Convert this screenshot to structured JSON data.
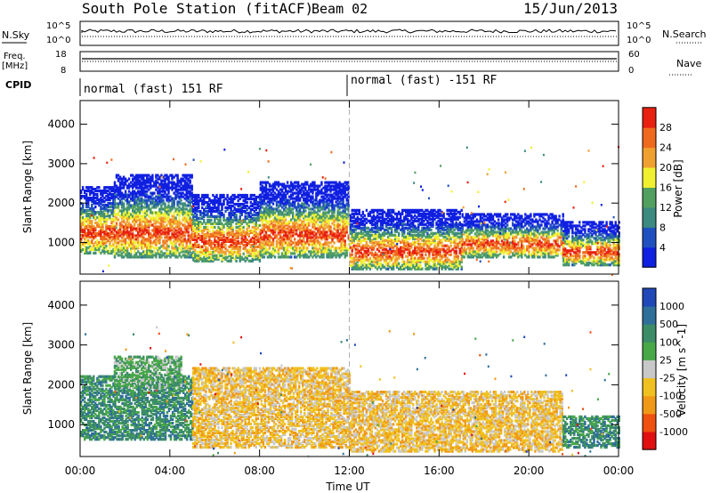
{
  "header": {
    "station": "South Pole Station (fitACF)",
    "beam": "Beam 02",
    "date": "15/Jun/2013"
  },
  "left_labels": {
    "nsky": "N.Sky",
    "freq": "Freq.",
    "mhz": "[MHz]",
    "cpid": "CPID"
  },
  "right_labels": {
    "nsearch": "N.Search",
    "nave": "Nave"
  },
  "noise_panel": {
    "tick_hi": "10^5",
    "tick_lo": "10^0"
  },
  "freq_panel": {
    "left_ticks": [
      "18",
      "8"
    ],
    "right_ticks": [
      "60",
      "0"
    ]
  },
  "cpid_segments": [
    "normal (fast) 151 RF",
    "normal (fast) -151 RF"
  ],
  "chart_data": [
    {
      "type": "heatmap",
      "name": "power",
      "xlabel": "",
      "ylabel": "Slant Range [km]",
      "y_ticks": [
        "1000",
        "2000",
        "3000",
        "4000"
      ],
      "ylim": [
        200,
        4600
      ],
      "xlim": [
        "00:00",
        "24:00"
      ],
      "colorbar": {
        "label": "Power [dB]",
        "ticks": [
          "4",
          "8",
          "12",
          "16",
          "20",
          "24",
          "28"
        ],
        "colors": [
          "#1020e0",
          "#2050c0",
          "#3d8a80",
          "#52a060",
          "#f0f030",
          "#f0a030",
          "#f06a1e",
          "#e82010"
        ]
      },
      "echo_bands": [
        {
          "t_start": 0.0,
          "t_end": 1.5,
          "range_low": 700,
          "range_high": 2400
        },
        {
          "t_start": 1.5,
          "t_end": 5.0,
          "range_low": 600,
          "range_high": 2700
        },
        {
          "t_start": 5.0,
          "t_end": 8.0,
          "range_low": 500,
          "range_high": 2200
        },
        {
          "t_start": 8.0,
          "t_end": 12.0,
          "range_low": 600,
          "range_high": 2500
        },
        {
          "t_start": 12.0,
          "t_end": 17.0,
          "range_low": 300,
          "range_high": 1800
        },
        {
          "t_start": 17.0,
          "t_end": 21.5,
          "range_low": 600,
          "range_high": 1700
        },
        {
          "t_start": 21.5,
          "t_end": 24.0,
          "range_low": 400,
          "range_high": 1500
        }
      ]
    },
    {
      "type": "heatmap",
      "name": "velocity",
      "xlabel": "Time UT",
      "ylabel": "Slant Range [km]",
      "x_ticks": [
        "00:00",
        "04:00",
        "08:00",
        "12:00",
        "16:00",
        "20:00",
        "00:00"
      ],
      "y_ticks": [
        "1000",
        "2000",
        "3000",
        "4000"
      ],
      "ylim": [
        200,
        4600
      ],
      "xlim": [
        "00:00",
        "24:00"
      ],
      "colorbar": {
        "label": "Velocity [m s^-1]",
        "ticks": [
          "1000",
          "500",
          "100",
          "25",
          "-25",
          "-100",
          "-500",
          "-1000"
        ],
        "colors": [
          "#2048b8",
          "#2f6f9a",
          "#3d8c68",
          "#48a848",
          "#c8c8c8",
          "#f0c020",
          "#f09818",
          "#f05010",
          "#e01010"
        ]
      },
      "echo_bands": [
        {
          "t_start": 0.0,
          "t_end": 5.0,
          "range_low": 600,
          "range_high": 2200,
          "dominant": "100"
        },
        {
          "t_start": 1.5,
          "t_end": 4.5,
          "range_low": 1900,
          "range_high": 2700,
          "dominant": "25"
        },
        {
          "t_start": 5.0,
          "t_end": 12.0,
          "range_low": 400,
          "range_high": 2400,
          "dominant": "-100"
        },
        {
          "t_start": 12.0,
          "t_end": 21.5,
          "range_low": 300,
          "range_high": 1800,
          "dominant": "-100"
        },
        {
          "t_start": 21.5,
          "t_end": 24.0,
          "range_low": 400,
          "range_high": 1200,
          "dominant": "100"
        }
      ]
    }
  ]
}
